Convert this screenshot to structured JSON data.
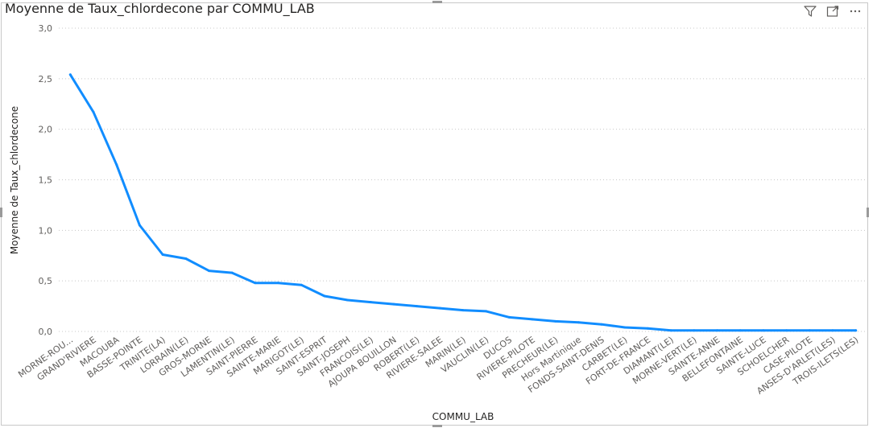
{
  "visual": {
    "title": "Moyenne de Taux_chlordecone par COMMU_LAB",
    "toolbar": [
      {
        "name": "filter-icon"
      },
      {
        "name": "focus-mode-icon"
      },
      {
        "name": "more-options-icon"
      }
    ]
  },
  "chart_data": {
    "type": "line",
    "title": "Moyenne de Taux_chlordecone par COMMU_LAB",
    "xlabel": "COMMU_LAB",
    "ylabel": "Moyenne de Taux_chlordecone",
    "ylim": [
      0,
      3
    ],
    "yticks": [
      "0,0",
      "0,5",
      "1,0",
      "1,5",
      "2,0",
      "2,5",
      "3,0"
    ],
    "grid": true,
    "line_color": "#118DFF",
    "categories": [
      "MORNE-ROU...",
      "GRAND'RIVIERE",
      "MACOUBA",
      "BASSE-POINTE",
      "TRINITE(LA)",
      "LORRAIN(LE)",
      "GROS-MORNE",
      "LAMENTIN(LE)",
      "SAINT-PIERRE",
      "SAINTE-MARIE",
      "MARIGOT(LE)",
      "SAINT-ESPRIT",
      "SAINT-JOSEPH",
      "FRANCOIS(LE)",
      "AJOUPA BOUILLON",
      "ROBERT(LE)",
      "RIVIERE-SALEE",
      "MARIN(LE)",
      "VAUCLIN(LE)",
      "DUCOS",
      "RIVIERE-PILOTE",
      "PRECHEUR(LE)",
      "Hors Martinique",
      "FONDS-SAINT-DENIS",
      "CARBET(LE)",
      "FORT-DE-FRANCE",
      "DIAMANT(LE)",
      "MORNE-VERT(LE)",
      "SAINTE-ANNE",
      "BELLEFONTAINE",
      "SAINTE-LUCE",
      "SCHOELCHER",
      "CASE-PILOTE",
      "ANSES-D'ARLET(LES)",
      "TROIS-ILETS(LES)"
    ],
    "values": [
      2.54,
      2.17,
      1.65,
      1.05,
      0.76,
      0.72,
      0.6,
      0.58,
      0.48,
      0.48,
      0.46,
      0.35,
      0.31,
      0.29,
      0.27,
      0.25,
      0.23,
      0.21,
      0.2,
      0.14,
      0.12,
      0.1,
      0.09,
      0.07,
      0.04,
      0.03,
      0.01,
      0.01,
      0.01,
      0.01,
      0.01,
      0.01,
      0.01,
      0.01,
      0.01
    ]
  }
}
